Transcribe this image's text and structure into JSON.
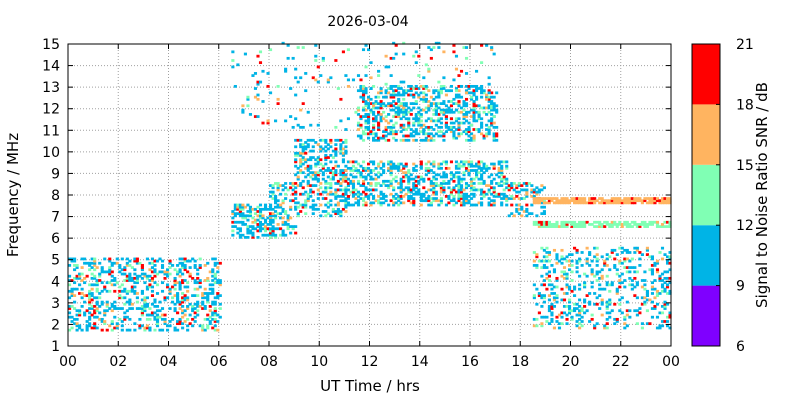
{
  "chart_data": {
    "type": "heatmap",
    "title": "2026-03-04",
    "xlabel": "UT Time / hrs",
    "ylabel": "Frequency / MHz",
    "xlim": [
      0,
      24
    ],
    "ylim": [
      1,
      15
    ],
    "x_ticks": [
      "00",
      "02",
      "04",
      "06",
      "08",
      "10",
      "12",
      "14",
      "16",
      "18",
      "20",
      "22",
      "00"
    ],
    "y_ticks": [
      "1",
      "2",
      "3",
      "4",
      "5",
      "6",
      "7",
      "8",
      "9",
      "10",
      "11",
      "12",
      "13",
      "14",
      "15"
    ],
    "grid": true,
    "colorbar": {
      "label": "Signal to Noise Ratio SNR / dB",
      "ticks": [
        "6",
        "9",
        "12",
        "15",
        "18",
        "21"
      ],
      "range": [
        6,
        21
      ],
      "bands": [
        {
          "from": 6,
          "to": 9,
          "color": "#7f00ff"
        },
        {
          "from": 9,
          "to": 12,
          "color": "#00b4e6"
        },
        {
          "from": 12,
          "to": 15,
          "color": "#80ffb4"
        },
        {
          "from": 15,
          "to": 18,
          "color": "#ffb460"
        },
        {
          "from": 18,
          "to": 21,
          "color": "#ff0000"
        }
      ]
    },
    "regions": [
      {
        "x": [
          0,
          6
        ],
        "y": [
          1.7,
          5.0
        ],
        "density": 0.3,
        "snr": [
          9,
          20
        ]
      },
      {
        "x": [
          6.5,
          8
        ],
        "y": [
          6.0,
          7.5
        ],
        "density": 0.45,
        "snr": [
          9,
          20
        ]
      },
      {
        "x": [
          8,
          9
        ],
        "y": [
          6.0,
          8.5
        ],
        "density": 0.4,
        "snr": [
          9,
          20
        ]
      },
      {
        "x": [
          9,
          11
        ],
        "y": [
          7.0,
          10.5
        ],
        "density": 0.4,
        "snr": [
          9,
          20
        ]
      },
      {
        "x": [
          11,
          17.5
        ],
        "y": [
          7.5,
          9.5
        ],
        "density": 0.45,
        "snr": [
          9,
          21
        ]
      },
      {
        "x": [
          11.5,
          17
        ],
        "y": [
          10.5,
          13.0
        ],
        "density": 0.38,
        "snr": [
          9,
          20
        ]
      },
      {
        "x": [
          17.5,
          19
        ],
        "y": [
          7.0,
          8.5
        ],
        "density": 0.4,
        "snr": [
          9,
          20
        ]
      },
      {
        "x": [
          18.5,
          24
        ],
        "y": [
          7.6,
          7.8
        ],
        "density": 0.85,
        "snr": [
          15,
          21
        ]
      },
      {
        "x": [
          18.5,
          24
        ],
        "y": [
          6.5,
          6.7
        ],
        "density": 0.75,
        "snr": [
          12,
          21
        ]
      },
      {
        "x": [
          18.5,
          24
        ],
        "y": [
          1.8,
          5.5
        ],
        "density": 0.22,
        "snr": [
          9,
          20
        ]
      },
      {
        "x": [
          6.5,
          17
        ],
        "y": [
          11.0,
          15.0
        ],
        "density": 0.05,
        "snr": [
          9,
          20
        ]
      }
    ]
  }
}
